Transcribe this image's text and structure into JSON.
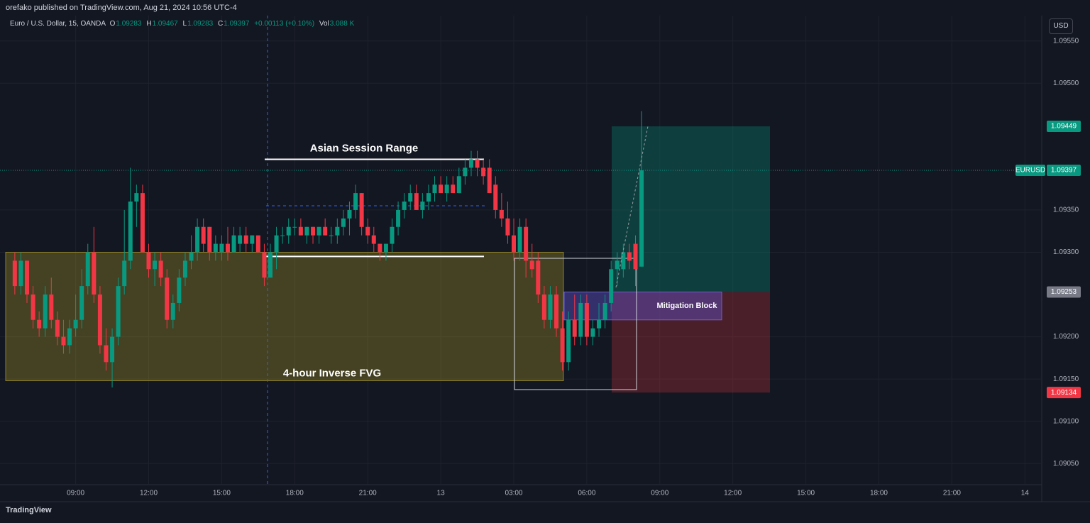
{
  "header": {
    "published": "orefako published on TradingView.com, Aug 21, 2024 10:56 UTC-4",
    "currency": "USD",
    "brand": "TradingView"
  },
  "legend": {
    "symbol": "Euro / U.S. Dollar, 15, OANDA",
    "o_key": "O",
    "open": "1.09283",
    "h_key": "H",
    "high": "1.09467",
    "l_key": "L",
    "low": "1.09283",
    "c_key": "C",
    "close": "1.09397",
    "change": "+0.00113 (+0.10%)",
    "vol_key": "Vol",
    "volume": "3.088 K"
  },
  "chart_data": {
    "type": "candlestick",
    "up_color": "#089981",
    "down_color": "#f23645",
    "grid": true,
    "xlim": [
      -1.5,
      169
    ],
    "xticks": [
      {
        "value": 10,
        "label": "09:00"
      },
      {
        "value": 22,
        "label": "12:00"
      },
      {
        "value": 34,
        "label": "15:00"
      },
      {
        "value": 46,
        "label": "18:00"
      },
      {
        "value": 58,
        "label": "21:00"
      },
      {
        "value": 70,
        "label": "13"
      },
      {
        "value": 82,
        "label": "03:00"
      },
      {
        "value": 94,
        "label": "06:00"
      },
      {
        "value": 106,
        "label": "09:00"
      },
      {
        "value": 118,
        "label": "12:00"
      },
      {
        "value": 130,
        "label": "15:00"
      },
      {
        "value": 142,
        "label": "18:00"
      },
      {
        "value": 154,
        "label": "21:00"
      },
      {
        "value": 166,
        "label": "14"
      }
    ],
    "ylim": [
      1.09025,
      1.0958
    ],
    "yticks": [
      {
        "value": 1.0955,
        "label": "1.09550"
      },
      {
        "value": 1.095,
        "label": "1.09500"
      },
      {
        "value": 1.0935,
        "label": "1.09350"
      },
      {
        "value": 1.093,
        "label": "1.09300"
      },
      {
        "value": 1.092,
        "label": "1.09200"
      },
      {
        "value": 1.0915,
        "label": "1.09150"
      },
      {
        "value": 1.091,
        "label": "1.09100"
      },
      {
        "value": 1.0905,
        "label": "1.09050"
      }
    ],
    "open": [
      1.0929,
      1.0926,
      1.0929,
      1.0925,
      1.0922,
      1.0921,
      1.0925,
      1.0922,
      1.092,
      1.0919,
      1.0921,
      1.0922,
      1.0926,
      1.093,
      1.0925,
      1.0919,
      1.0917,
      1.092,
      1.0926,
      1.0929,
      1.0936,
      1.0937,
      1.093,
      1.0928,
      1.0929,
      1.0927,
      1.0922,
      1.0924,
      1.0927,
      1.0929,
      1.093,
      1.0933,
      1.0933,
      1.093,
      1.093,
      1.0931,
      1.093,
      1.0931,
      1.0932,
      1.0931,
      1.0932,
      1.093,
      1.0927,
      1.093,
      1.0932,
      1.0932,
      1.0933,
      1.0933,
      1.0932,
      1.0933,
      1.0932,
      1.0933,
      1.0932,
      1.0932,
      1.0933,
      1.0934,
      1.0935,
      1.0937,
      1.0933,
      1.0932,
      1.0931,
      1.093,
      1.0931,
      1.0933,
      1.0935,
      1.0936,
      1.0937,
      1.0935,
      1.0936,
      1.0937,
      1.0938,
      1.0937,
      1.0938,
      1.0937,
      1.0939,
      1.094,
      1.0941,
      1.094,
      1.094,
      1.0938,
      1.0935,
      1.0934,
      1.0932,
      1.093,
      1.0933,
      1.0929,
      1.0929,
      1.0925,
      1.0922,
      1.0925,
      1.0921,
      1.0917,
      1.0922,
      1.092,
      1.0924,
      1.092,
      1.0921,
      1.0922,
      1.0924,
      1.0928,
      1.0928,
      1.093,
      1.0931,
      1.09283
    ],
    "high": [
      1.093,
      1.093,
      1.0929,
      1.0926,
      1.0923,
      1.0926,
      1.0927,
      1.0923,
      1.0922,
      1.0922,
      1.0925,
      1.0928,
      1.0931,
      1.0933,
      1.0926,
      1.0921,
      1.0921,
      1.0927,
      1.0935,
      1.094,
      1.0938,
      1.0938,
      1.0931,
      1.093,
      1.093,
      1.0928,
      1.0925,
      1.0928,
      1.093,
      1.0932,
      1.0934,
      1.0934,
      1.0933,
      1.0932,
      1.0932,
      1.0933,
      1.0933,
      1.0933,
      1.0933,
      1.0932,
      1.0932,
      1.0931,
      1.0931,
      1.0933,
      1.0933,
      1.0934,
      1.0934,
      1.0934,
      1.0933,
      1.0933,
      1.0933,
      1.0934,
      1.0933,
      1.0934,
      1.0935,
      1.0936,
      1.0938,
      1.0937,
      1.0934,
      1.0933,
      1.0931,
      1.0931,
      1.0934,
      1.0936,
      1.0937,
      1.0938,
      1.0938,
      1.0937,
      1.0938,
      1.0939,
      1.0939,
      1.0939,
      1.0939,
      1.094,
      1.0941,
      1.0942,
      1.0942,
      1.0941,
      1.0941,
      1.0939,
      1.0937,
      1.0936,
      1.0934,
      1.0934,
      1.0934,
      1.0931,
      1.093,
      1.0926,
      1.0926,
      1.0926,
      1.0923,
      1.0923,
      1.0925,
      1.0925,
      1.0925,
      1.0922,
      1.0924,
      1.0925,
      1.0929,
      1.093,
      1.0931,
      1.0931,
      1.0932,
      1.09467
    ],
    "low": [
      1.0925,
      1.0925,
      1.0924,
      1.0921,
      1.092,
      1.092,
      1.0921,
      1.0919,
      1.0918,
      1.0918,
      1.092,
      1.0921,
      1.0925,
      1.0924,
      1.0918,
      1.0916,
      1.0914,
      1.0919,
      1.0925,
      1.0928,
      1.0933,
      1.093,
      1.0927,
      1.0926,
      1.0926,
      1.0921,
      1.0921,
      1.0923,
      1.0926,
      1.0928,
      1.0929,
      1.093,
      1.0929,
      1.0929,
      1.0929,
      1.0929,
      1.093,
      1.093,
      1.093,
      1.093,
      1.093,
      1.0926,
      1.0927,
      1.0928,
      1.0931,
      1.0931,
      1.0932,
      1.0932,
      1.0931,
      1.0931,
      1.0931,
      1.0932,
      1.0931,
      1.0931,
      1.0932,
      1.0932,
      1.0934,
      1.0932,
      1.0931,
      1.093,
      1.0929,
      1.0929,
      1.093,
      1.0932,
      1.0934,
      1.0935,
      1.0935,
      1.0934,
      1.0935,
      1.0936,
      1.0937,
      1.0936,
      1.0937,
      1.0937,
      1.0938,
      1.0939,
      1.0939,
      1.0938,
      1.0937,
      1.0934,
      1.0933,
      1.0931,
      1.0929,
      1.0929,
      1.0927,
      1.0927,
      1.0924,
      1.0921,
      1.0921,
      1.092,
      1.0916,
      1.0916,
      1.0919,
      1.0919,
      1.0919,
      1.0919,
      1.092,
      1.0921,
      1.0923,
      1.0926,
      1.0927,
      1.0928,
      1.0926,
      1.09283
    ],
    "close": [
      1.0926,
      1.0929,
      1.0925,
      1.0922,
      1.0921,
      1.0925,
      1.0922,
      1.092,
      1.0919,
      1.0921,
      1.0922,
      1.0926,
      1.093,
      1.0925,
      1.0919,
      1.0917,
      1.092,
      1.0926,
      1.0929,
      1.0936,
      1.0937,
      1.093,
      1.0928,
      1.0929,
      1.0927,
      1.0922,
      1.0924,
      1.0927,
      1.0929,
      1.093,
      1.0933,
      1.0931,
      1.093,
      1.0931,
      1.0931,
      1.093,
      1.0932,
      1.0932,
      1.0931,
      1.0932,
      1.093,
      1.0927,
      1.093,
      1.0932,
      1.0932,
      1.0933,
      1.0933,
      1.0932,
      1.0933,
      1.0932,
      1.0933,
      1.0932,
      1.0932,
      1.0933,
      1.0934,
      1.0935,
      1.0937,
      1.0933,
      1.0932,
      1.0931,
      1.093,
      1.0931,
      1.0933,
      1.0935,
      1.0936,
      1.0937,
      1.0935,
      1.0936,
      1.0937,
      1.0938,
      1.0937,
      1.0938,
      1.0937,
      1.0939,
      1.094,
      1.0941,
      1.094,
      1.0939,
      1.0937,
      1.0935,
      1.0934,
      1.0932,
      1.093,
      1.0933,
      1.0929,
      1.0928,
      1.0925,
      1.0922,
      1.0925,
      1.0921,
      1.0917,
      1.0922,
      1.092,
      1.0924,
      1.092,
      1.0921,
      1.0922,
      1.0924,
      1.0928,
      1.0929,
      1.093,
      1.0929,
      1.0928,
      1.09397
    ],
    "last_price": {
      "symbol": "EURUSD",
      "value": 1.09397,
      "label": "1.09397"
    },
    "annotations": {
      "asian_range": {
        "label": "Asian Session Range",
        "high": 1.0941,
        "mid": 1.09355,
        "low": 1.09295
      },
      "fvg": {
        "label": "4-hour Inverse FVG",
        "top": 1.093,
        "bottom": 1.09148
      },
      "mitigation": {
        "label": "Mitigation Block",
        "top": 1.09253,
        "bottom": 1.0922
      },
      "position": {
        "target": {
          "value": 1.09449,
          "label": "1.09449"
        },
        "entry": {
          "value": 1.09253,
          "label": "1.09253"
        },
        "stop": {
          "value": 1.09134,
          "label": "1.09134"
        }
      }
    }
  }
}
